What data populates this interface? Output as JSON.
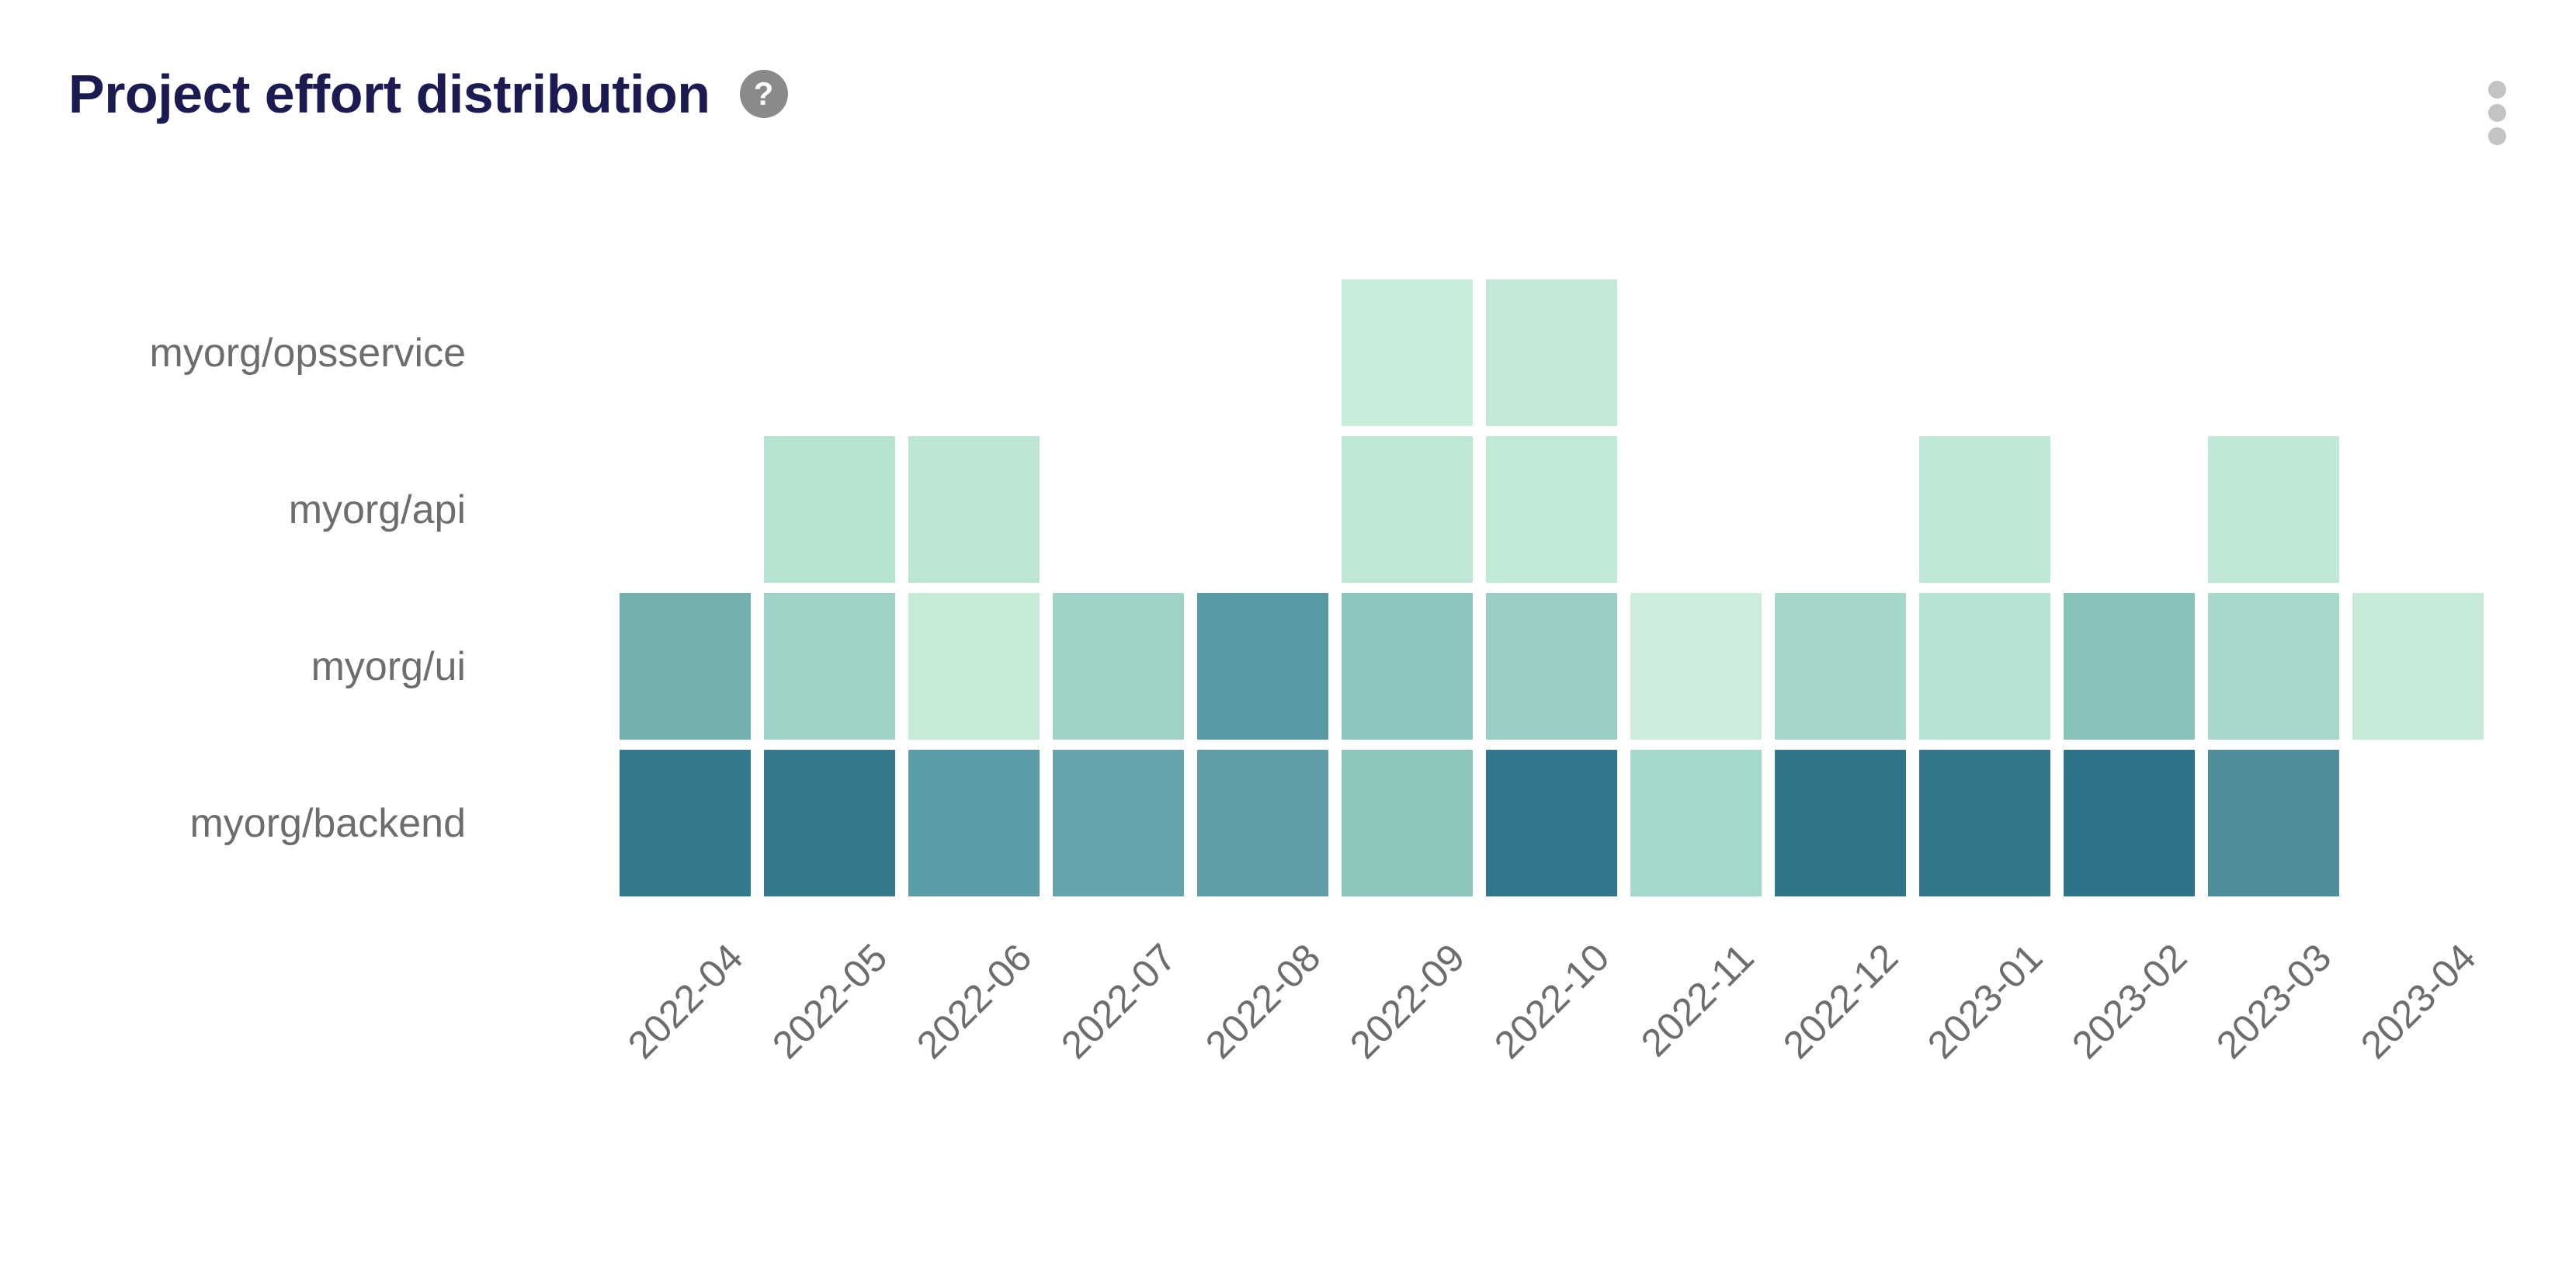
{
  "header": {
    "title": "Project effort distribution",
    "help_glyph": "?"
  },
  "colors": {
    "background": "#ffffff",
    "title": "#1b1b52",
    "label": "#6d6d6d",
    "help_bg": "#8a8a8a",
    "help_fg": "#ffffff",
    "menu_dot": "#c3c3c3"
  },
  "icons": {
    "help": "question-mark-circle-icon",
    "menu": "kebab-vertical-icon"
  },
  "chart_data": {
    "type": "heatmap",
    "title": "Project effort distribution",
    "x_categories": [
      "2022-04",
      "2022-05",
      "2022-06",
      "2022-07",
      "2022-08",
      "2022-09",
      "2022-10",
      "2022-11",
      "2022-12",
      "2023-01",
      "2023-02",
      "2023-03",
      "2023-04"
    ],
    "y_categories": [
      "myorg/opsservice",
      "myorg/api",
      "myorg/ui",
      "myorg/backend"
    ],
    "value_encoding": "cell fill color darkness encodes relative effort; no numeric labels or legend are shown; absent months render as blank",
    "rows": [
      {
        "name": "myorg/opsservice",
        "cells": [
          null,
          null,
          null,
          null,
          null,
          "#c6ecda",
          "#c2e9d7",
          null,
          null,
          null,
          null,
          null,
          null
        ]
      },
      {
        "name": "myorg/api",
        "cells": [
          null,
          "#b7e4d1",
          "#bae6d3",
          null,
          null,
          "#bee8d5",
          "#c0e9d6",
          null,
          null,
          "#bfe8d6",
          null,
          "#bfe8d6",
          null
        ]
      },
      {
        "name": "myorg/ui",
        "cells": [
          "#74afae",
          "#9ed2c7",
          "#c8ebd8",
          "#a0d3c8",
          "#589aa4",
          "#8dc6be",
          "#9bcfc6",
          "#cdeedd",
          "#a4d6ca",
          "#b5e3d2",
          "#89c1bb",
          "#a6d8cb",
          "#c8ebd9"
        ]
      },
      {
        "name": "myorg/backend",
        "cells": [
          "#33798e",
          "#35798e",
          "#5c9ca6",
          "#66a3ab",
          "#609ea7",
          "#8ec6be",
          "#31768c",
          "#a5d8cc",
          "#31758b",
          "#33778d",
          "#2d7389",
          "#4f8d9b",
          null
        ]
      }
    ],
    "layout_hints": {
      "x_label_rotation_deg": 45,
      "legend": "none",
      "grid_lines": "none",
      "cell_gap": "white gutters between cells",
      "row_label_alignment": "right"
    }
  }
}
